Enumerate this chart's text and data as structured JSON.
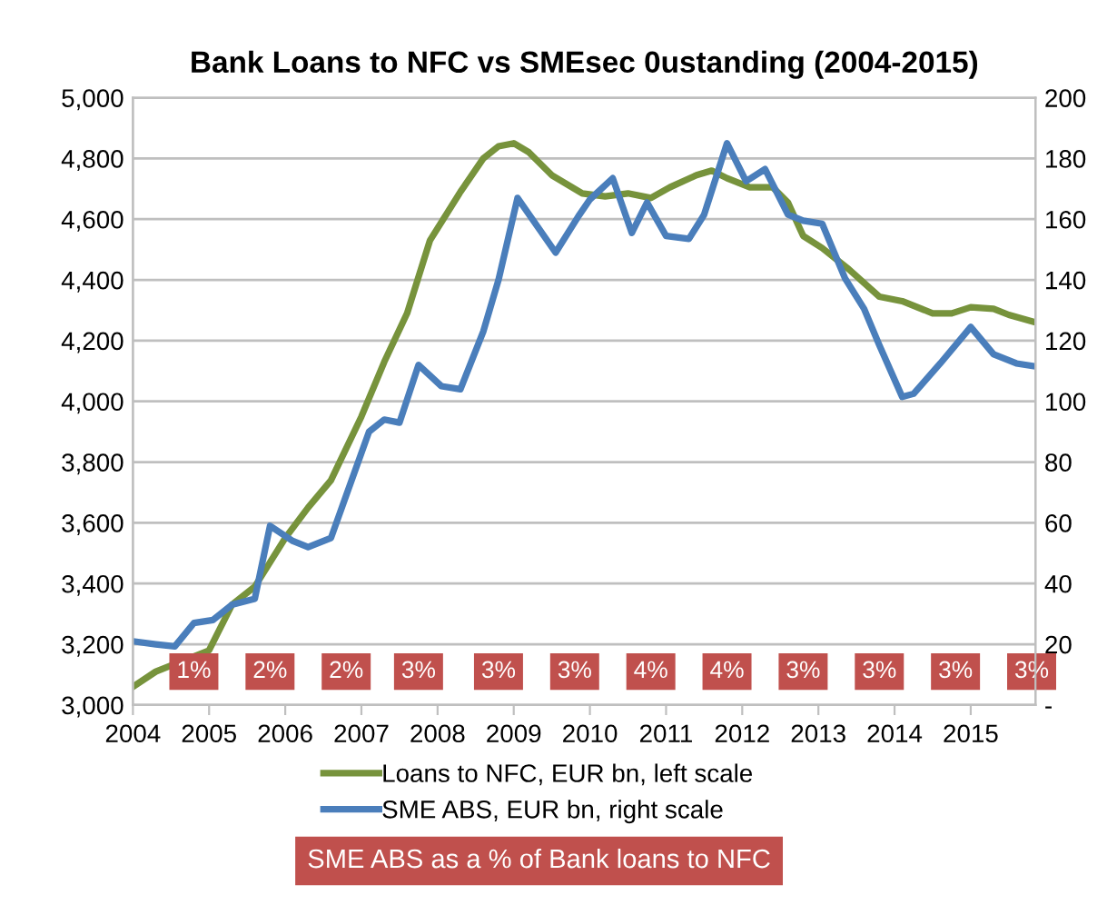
{
  "chart_data": {
    "type": "line",
    "title": "Bank Loans to NFC vs SMEsec 0ustanding (2004-2015)",
    "xlim": [
      2004,
      2015.85
    ],
    "xticks": [
      2004,
      2005,
      2006,
      2007,
      2008,
      2009,
      2010,
      2011,
      2012,
      2013,
      2014,
      2015
    ],
    "ylim": [
      3000,
      5000
    ],
    "yticks": [
      {
        "value": 3000,
        "label": "3,000"
      },
      {
        "value": 3200,
        "label": "3,200"
      },
      {
        "value": 3400,
        "label": "3,400"
      },
      {
        "value": 3600,
        "label": "3,600"
      },
      {
        "value": 3800,
        "label": "3,800"
      },
      {
        "value": 4000,
        "label": "4,000"
      },
      {
        "value": 4200,
        "label": "4,200"
      },
      {
        "value": 4400,
        "label": "4,400"
      },
      {
        "value": 4600,
        "label": "4,600"
      },
      {
        "value": 4800,
        "label": "4,800"
      },
      {
        "value": 5000,
        "label": "5,000"
      }
    ],
    "y2lim": [
      0,
      200
    ],
    "y2ticks": [
      {
        "value": 0,
        "label": "-"
      },
      20,
      40,
      60,
      80,
      100,
      120,
      140,
      160,
      180,
      200
    ],
    "grid": "y",
    "legend": "bottom",
    "marker": "none",
    "line_style": "solid",
    "series": [
      {
        "name": "Loans to NFC, EUR bn, left scale",
        "color": "#77933c",
        "x": [
          2004,
          2004.3,
          2005,
          2005.3,
          2005.6,
          2006,
          2006.3,
          2006.6,
          2007,
          2007.3,
          2007.6,
          2007.9,
          2008.3,
          2008.6,
          2008.8,
          2009,
          2009.2,
          2009.5,
          2009.9,
          2010.2,
          2010.5,
          2010.8,
          2011.05,
          2011.4,
          2011.6,
          2011.8,
          2012.1,
          2012.4,
          2012.6,
          2012.8,
          2013.05,
          2013.4,
          2013.8,
          2014.1,
          2014.5,
          2014.75,
          2015,
          2015.3,
          2015.5,
          2015.85
        ],
        "values": [
          3060,
          3110,
          3180,
          3330,
          3390,
          3550,
          3650,
          3740,
          3950,
          4130,
          4290,
          4530,
          4690,
          4800,
          4840,
          4850,
          4820,
          4745,
          4685,
          4675,
          4685,
          4670,
          4705,
          4745,
          4760,
          4735,
          4705,
          4705,
          4655,
          4545,
          4505,
          4435,
          4345,
          4330,
          4290,
          4290,
          4310,
          4305,
          4285,
          4260
        ]
      },
      {
        "name": "SME ABS, EUR bn, right scale",
        "color": "#4a7ebb",
        "axis": "y2",
        "x": [
          2004,
          2004.3,
          2004.55,
          2004.8,
          2005.05,
          2005.3,
          2005.6,
          2005.8,
          2006.1,
          2006.3,
          2006.6,
          2006.8,
          2007.1,
          2007.3,
          2007.5,
          2007.75,
          2008.05,
          2008.3,
          2008.6,
          2008.8,
          2009.05,
          2009.55,
          2009.85,
          2010,
          2010.3,
          2010.55,
          2010.75,
          2011,
          2011.3,
          2011.5,
          2011.8,
          2012.05,
          2012.3,
          2012.6,
          2012.8,
          2013.05,
          2013.35,
          2013.6,
          2013.8,
          2014.1,
          2014.25,
          2014.6,
          2015,
          2015.3,
          2015.6,
          2015.85
        ],
        "values": [
          21,
          20,
          19.3,
          27,
          28,
          33,
          35,
          59,
          54,
          52,
          55,
          69,
          90,
          94,
          93,
          112,
          105,
          104,
          123,
          140,
          167,
          149,
          161,
          166.5,
          173.5,
          155.5,
          165.5,
          154.5,
          153.5,
          161.5,
          185,
          172.5,
          176.5,
          161.5,
          159.5,
          158.5,
          140.5,
          130.5,
          118.5,
          101.5,
          102.5,
          112.5,
          124.5,
          115.5,
          112.5,
          111.5
        ]
      }
    ],
    "annotations": [
      {
        "text": "1%",
        "x": 2004.8,
        "y": 3110
      },
      {
        "text": "2%",
        "x": 2005.8,
        "y": 3110
      },
      {
        "text": "2%",
        "x": 2006.8,
        "y": 3110
      },
      {
        "text": "3%",
        "x": 2007.75,
        "y": 3110
      },
      {
        "text": "3%",
        "x": 2008.8,
        "y": 3110
      },
      {
        "text": "3%",
        "x": 2009.8,
        "y": 3110
      },
      {
        "text": "4%",
        "x": 2010.8,
        "y": 3110
      },
      {
        "text": "4%",
        "x": 2011.8,
        "y": 3110
      },
      {
        "text": "3%",
        "x": 2012.8,
        "y": 3110
      },
      {
        "text": "3%",
        "x": 2013.8,
        "y": 3110
      },
      {
        "text": "3%",
        "x": 2014.8,
        "y": 3110
      },
      {
        "text": "3%",
        "x": 2015.8,
        "y": 3110
      },
      "SME ABS as a % of Bank loans to NFC"
    ]
  }
}
